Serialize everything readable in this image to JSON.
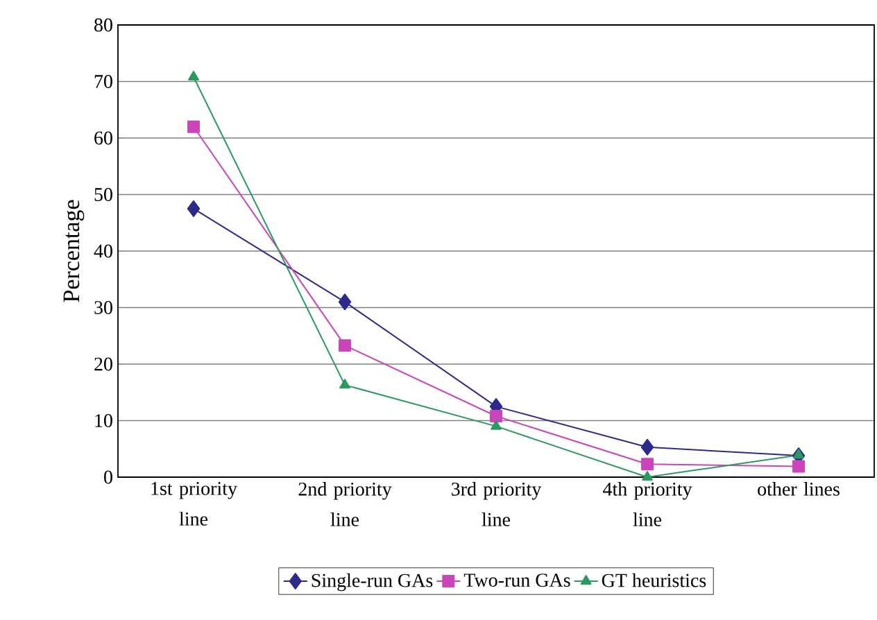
{
  "chart_data": {
    "type": "line",
    "ylabel": "Percentage",
    "categories": [
      "1st priority line",
      "2nd priority line",
      "3rd priority line",
      "4th priority line",
      "other lines"
    ],
    "series": [
      {
        "name": "Single-run GAs",
        "color": "#2e2a8c",
        "marker": "diamond",
        "values": [
          47.5,
          31,
          12.5,
          5.3,
          3.8
        ]
      },
      {
        "name": "Two-run GAs",
        "color": "#cc44bb",
        "marker": "square",
        "values": [
          62,
          23.3,
          10.8,
          2.3,
          1.9
        ]
      },
      {
        "name": "GT heuristics",
        "color": "#2a9a60",
        "marker": "triangle",
        "values": [
          70.8,
          16.3,
          9,
          0,
          3.9
        ]
      }
    ],
    "ylim": [
      0,
      80
    ],
    "yticks": [
      0,
      10,
      20,
      30,
      40,
      50,
      60,
      70,
      80
    ],
    "grid": "y",
    "legend": "bottom",
    "line_style": "solid"
  }
}
